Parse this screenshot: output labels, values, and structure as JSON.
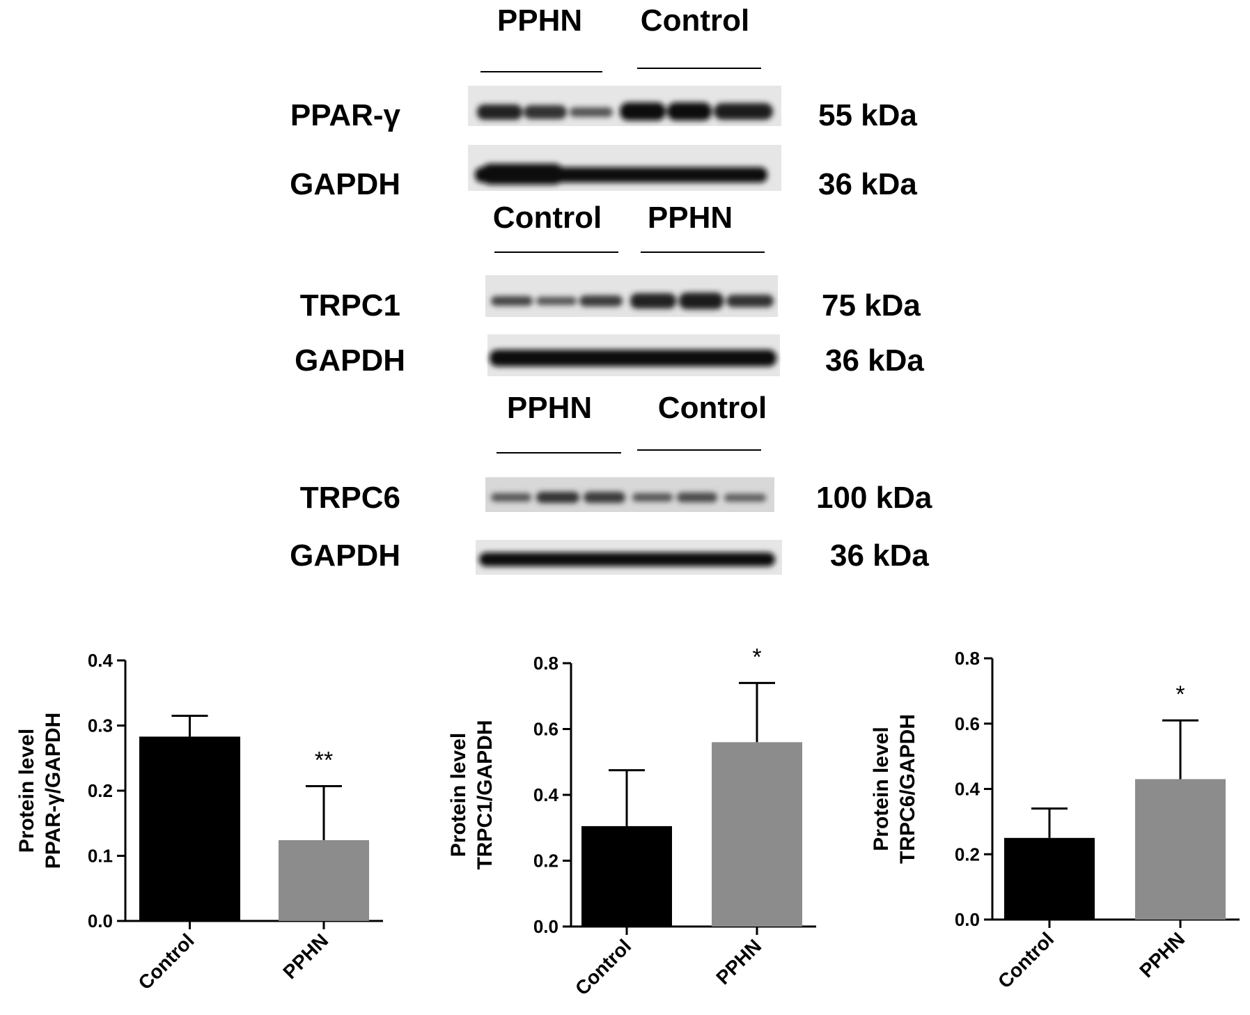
{
  "blots": [
    {
      "groups": [
        "PPHN",
        "Control"
      ],
      "rows": [
        {
          "protein": "PPAR-γ",
          "size": "55 kDa"
        },
        {
          "protein": "GAPDH",
          "size": "36 kDa"
        }
      ]
    },
    {
      "groups": [
        "Control",
        "PPHN"
      ],
      "rows": [
        {
          "protein": "TRPC1",
          "size": "75 kDa"
        },
        {
          "protein": "GAPDH",
          "size": "36 kDa"
        }
      ]
    },
    {
      "groups": [
        "PPHN",
        "Control"
      ],
      "rows": [
        {
          "protein": "TRPC6",
          "size": "100 kDa"
        },
        {
          "protein": "GAPDH",
          "size": "36 kDa"
        }
      ]
    }
  ],
  "chart_data": [
    {
      "type": "bar",
      "categories": [
        "Control",
        "PPHN"
      ],
      "values": [
        0.283,
        0.124
      ],
      "errors": [
        0.032,
        0.083
      ],
      "significance": [
        "",
        "**"
      ],
      "ylabel_line1": "Protein level",
      "ylabel_line2": "PPAR-γ/GAPDH",
      "ylim": [
        0,
        0.4
      ],
      "yticks": [
        "0.0",
        "0.1",
        "0.2",
        "0.3",
        "0.4"
      ],
      "colors": [
        "#000000",
        "#8c8c8c"
      ]
    },
    {
      "type": "bar",
      "categories": [
        "Control",
        "PPHN"
      ],
      "values": [
        0.305,
        0.56
      ],
      "errors": [
        0.17,
        0.18
      ],
      "significance": [
        "",
        "*"
      ],
      "ylabel_line1": "Protein level",
      "ylabel_line2": "TRPC1/GAPDH",
      "ylim": [
        0,
        0.8
      ],
      "yticks": [
        "0.0",
        "0.2",
        "0.4",
        "0.6",
        "0.8"
      ],
      "colors": [
        "#000000",
        "#8c8c8c"
      ]
    },
    {
      "type": "bar",
      "categories": [
        "Control",
        "PPHN"
      ],
      "values": [
        0.25,
        0.43
      ],
      "errors": [
        0.09,
        0.18
      ],
      "significance": [
        "",
        "*"
      ],
      "ylabel_line1": "Protein level",
      "ylabel_line2": "TRPC6/GAPDH",
      "ylim": [
        0,
        0.8
      ],
      "yticks": [
        "0.0",
        "0.2",
        "0.4",
        "0.6",
        "0.8"
      ],
      "colors": [
        "#000000",
        "#8c8c8c"
      ]
    }
  ]
}
